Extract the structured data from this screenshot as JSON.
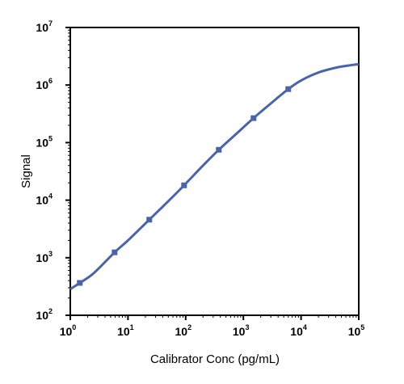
{
  "chart_data": {
    "type": "line",
    "title": "",
    "xlabel": "Calibrator Conc (pg/mL)",
    "ylabel": "Signal",
    "x_scale": "log10",
    "y_scale": "log10",
    "xlim": [
      1,
      100000
    ],
    "ylim": [
      100,
      10000000
    ],
    "x_ticks": [
      {
        "base": "10",
        "exp": "0",
        "value": 1
      },
      {
        "base": "10",
        "exp": "1",
        "value": 10
      },
      {
        "base": "10",
        "exp": "2",
        "value": 100
      },
      {
        "base": "10",
        "exp": "3",
        "value": 1000
      },
      {
        "base": "10",
        "exp": "4",
        "value": 10000
      },
      {
        "base": "10",
        "exp": "5",
        "value": 100000
      }
    ],
    "y_ticks": [
      {
        "base": "10",
        "exp": "2",
        "value": 100
      },
      {
        "base": "10",
        "exp": "3",
        "value": 1000
      },
      {
        "base": "10",
        "exp": "4",
        "value": 10000
      },
      {
        "base": "10",
        "exp": "5",
        "value": 100000
      },
      {
        "base": "10",
        "exp": "6",
        "value": 1000000
      },
      {
        "base": "10",
        "exp": "7",
        "value": 10000000
      }
    ],
    "grid": false,
    "legend": "none",
    "color": "#4a63ad",
    "series": [
      {
        "points": [
          {
            "x": 1.46,
            "y": 365
          },
          {
            "x": 5.86,
            "y": 1240
          },
          {
            "x": 23.4,
            "y": 4580
          },
          {
            "x": 93.8,
            "y": 18100
          },
          {
            "x": 375,
            "y": 75000
          },
          {
            "x": 1500,
            "y": 266000
          },
          {
            "x": 6000,
            "y": 850000
          }
        ],
        "fit_curve": [
          {
            "x": 1,
            "y": 285
          },
          {
            "x": 1.46,
            "y": 365
          },
          {
            "x": 2.5,
            "y": 530
          },
          {
            "x": 5.86,
            "y": 1240
          },
          {
            "x": 10,
            "y": 2000
          },
          {
            "x": 23.4,
            "y": 4580
          },
          {
            "x": 50,
            "y": 9600
          },
          {
            "x": 93.8,
            "y": 18100
          },
          {
            "x": 200,
            "y": 40000
          },
          {
            "x": 375,
            "y": 75000
          },
          {
            "x": 800,
            "y": 150000
          },
          {
            "x": 1500,
            "y": 266000
          },
          {
            "x": 3000,
            "y": 480000
          },
          {
            "x": 6000,
            "y": 850000
          },
          {
            "x": 10000,
            "y": 1200000
          },
          {
            "x": 20000,
            "y": 1650000
          },
          {
            "x": 40000,
            "y": 2000000
          },
          {
            "x": 70000,
            "y": 2200000
          },
          {
            "x": 100000,
            "y": 2300000
          }
        ]
      }
    ]
  }
}
